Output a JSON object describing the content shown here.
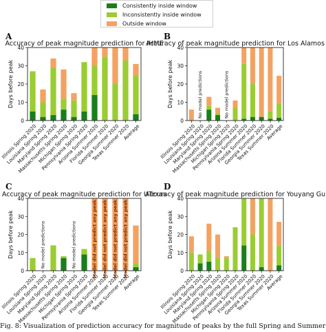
{
  "legend": {
    "items": [
      {
        "label": "Consistently inside window",
        "color": "#1a7f1a"
      },
      {
        "label": "Inconsistently inside window",
        "color": "#9acd32"
      },
      {
        "label": "Outside window",
        "color": "#f4a261"
      }
    ]
  },
  "caption": "Fig. 8: Visualization of prediction accuracy for magnitude of peaks by the full Spring and Summer 2",
  "chart_data": [
    {
      "panel": "A",
      "type": "bar",
      "stacked": true,
      "title": "Accuracy of peak magnitude prediction for IHME",
      "ylabel": "Days before peak",
      "ylim": [
        0,
        40
      ],
      "yticks": [
        0,
        10,
        20,
        30,
        40
      ],
      "categories": [
        "Illinois Spring 2020",
        "Louisiana Spring 2020",
        "Maryland Spring 2020",
        "Massachusetts Spring 2020",
        "Michigan Spring 2020",
        "Pennsylvania Spring 2020",
        "Arizona Summer 2020",
        "Florida Summer 2020",
        "Georgia Summer 2020",
        "Texas Summer 2020",
        "Average"
      ],
      "series": [
        {
          "name": "Consistently inside window",
          "values": [
            5,
            2,
            3,
            6,
            2,
            5,
            14,
            0,
            0,
            0,
            3.5
          ]
        },
        {
          "name": "Inconsistently inside window",
          "values": [
            22,
            8,
            26,
            6,
            9,
            27,
            16,
            35,
            20,
            33,
            21
          ]
        },
        {
          "name": "Outside window",
          "values": [
            0,
            7,
            5,
            16,
            4,
            0,
            10,
            5,
            20,
            7,
            6.5
          ]
        }
      ],
      "annotations": []
    },
    {
      "panel": "B",
      "type": "bar",
      "stacked": true,
      "title": "Accuracy of peak magnitude prediction for Los Alamos",
      "ylabel": "Days before peak",
      "ylim": [
        0,
        40
      ],
      "yticks": [
        0,
        10,
        20,
        30,
        40
      ],
      "categories": [
        "Illinois Spring 2020",
        "Louisiana Spring 2020",
        "Maryland Spring 2020",
        "Massachusetts Spring 2020",
        "Michigan Spring 2020",
        "Pennsylvania Spring 2020",
        "Arizona Summer 2020",
        "Florida Summer 2020",
        "Georgia Summer 2020",
        "Texas Summer 2020",
        "Average"
      ],
      "series": [
        {
          "name": "Consistently inside window",
          "values": [
            0,
            0,
            6,
            3,
            0,
            0,
            1,
            2,
            2,
            1,
            1.5
          ]
        },
        {
          "name": "Inconsistently inside window",
          "values": [
            0,
            0,
            2,
            1,
            0,
            7,
            30,
            18,
            0,
            4,
            8
          ]
        },
        {
          "name": "Outside window",
          "values": [
            6,
            0,
            5,
            3,
            0,
            4,
            9,
            20,
            38,
            35,
            15
          ]
        }
      ],
      "annotations": [
        {
          "category": "Louisiana Spring 2020",
          "text": "No model predictions"
        },
        {
          "category": "Michigan Spring 2020",
          "text": "No model predictions"
        }
      ]
    },
    {
      "panel": "C",
      "type": "bar",
      "stacked": true,
      "title": "Accuracy of peak magnitude prediction for UTexas",
      "ylabel": "Days before peak",
      "ylim": [
        0,
        40
      ],
      "yticks": [
        0,
        10,
        20,
        30,
        40
      ],
      "categories": [
        "Illinois Spring 2020",
        "Louisiana Spring 2020",
        "Maryland Spring 2020",
        "Massachusetts Spring 2020",
        "Michigan Spring 2020",
        "Pennsylvania Spring 2020",
        "Arizona Summer 2020",
        "Florida Summer 2020",
        "Georgia Summer 2020",
        "Texas Summer 2020",
        "Average"
      ],
      "series": [
        {
          "name": "Consistently inside window",
          "values": [
            0,
            0,
            0,
            7,
            0,
            9,
            0,
            0,
            0,
            0,
            2
          ]
        },
        {
          "name": "Inconsistently inside window",
          "values": [
            7,
            0,
            14,
            1,
            0,
            3,
            0,
            0,
            0,
            0,
            2
          ]
        },
        {
          "name": "Outside window",
          "values": [
            0,
            0,
            0,
            0,
            0,
            0,
            40,
            40,
            40,
            40,
            21
          ]
        }
      ],
      "annotations": [
        {
          "category": "Louisiana Spring 2020",
          "text": "No model predictions"
        },
        {
          "category": "Michigan Spring 2020",
          "text": "No model predictions"
        },
        {
          "category": "Arizona Summer 2020",
          "text": "Model did not predict any peak"
        },
        {
          "category": "Florida Summer 2020",
          "text": "Model did not predict any peak"
        },
        {
          "category": "Georgia Summer 2020",
          "text": "Model did not predict any peak"
        },
        {
          "category": "Texas Summer 2020",
          "text": "Model did not predict any peak"
        }
      ]
    },
    {
      "panel": "D",
      "type": "bar",
      "stacked": true,
      "title": "Accuracy of peak magnitude prediction for Youyang Gu",
      "ylabel": "Days before peak",
      "ylim": [
        0,
        40
      ],
      "yticks": [
        0,
        10,
        20,
        30,
        40
      ],
      "categories": [
        "Illinois Spring 2020",
        "Louisiana Spring 2020",
        "Maryland Spring 2020",
        "Massachusetts Spring 2020",
        "Michigan Spring 2020",
        "Pennsylvania Spring 2020",
        "Arizona Summer 2020",
        "Florida Summer 2020",
        "Georgia Summer 2020",
        "Texas Summer 2020",
        "Average"
      ],
      "series": [
        {
          "name": "Consistently inside window",
          "values": [
            0,
            4,
            5,
            0,
            0,
            0,
            14,
            0,
            2,
            0,
            3
          ]
        },
        {
          "name": "Inconsistently inside window",
          "values": [
            10,
            5,
            6,
            7,
            7,
            24,
            26,
            20,
            38,
            0,
            11
          ]
        },
        {
          "name": "Outside window",
          "values": [
            9,
            0,
            15,
            13,
            1,
            0,
            0,
            20,
            0,
            40,
            13
          ]
        }
      ],
      "annotations": []
    }
  ]
}
